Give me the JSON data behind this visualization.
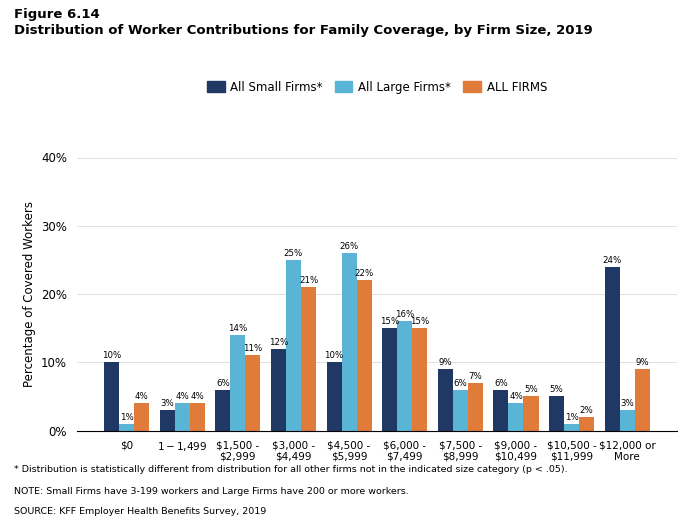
{
  "title_line1": "Figure 6.14",
  "title_line2": "Distribution of Worker Contributions for Family Coverage, by Firm Size, 2019",
  "categories": [
    "$0",
    "$1 - $1,499",
    "$1,500 -\n$2,999",
    "$3,000 -\n$4,499",
    "$4,500 -\n$5,999",
    "$6,000 -\n$7,499",
    "$7,500 -\n$8,999",
    "$9,000 -\n$10,499",
    "$10,500 -\n$11,999",
    "$12,000 or\nMore"
  ],
  "small_firms": [
    10,
    3,
    6,
    12,
    10,
    15,
    9,
    6,
    5,
    24
  ],
  "large_firms": [
    1,
    4,
    14,
    25,
    26,
    16,
    6,
    4,
    1,
    3
  ],
  "all_firms": [
    4,
    4,
    11,
    21,
    22,
    15,
    7,
    5,
    2,
    9
  ],
  "colors": {
    "small": "#1f3864",
    "large": "#5ab4d6",
    "all": "#e07b39"
  },
  "legend_labels": [
    "All Small Firms*",
    "All Large Firms*",
    "ALL FIRMS"
  ],
  "ylabel": "Percentage of Covered Workers",
  "ylim": [
    0,
    40
  ],
  "yticks": [
    0,
    10,
    20,
    30,
    40
  ],
  "ytick_labels": [
    "0%",
    "10%",
    "20%",
    "30%",
    "40%"
  ],
  "footnote1": "* Distribution is statistically different from distribution for all other firms not in the indicated size category (p < .05).",
  "footnote2": "NOTE: Small Firms have 3-199 workers and Large Firms have 200 or more workers.",
  "footnote3": "SOURCE: KFF Employer Health Benefits Survey, 2019"
}
